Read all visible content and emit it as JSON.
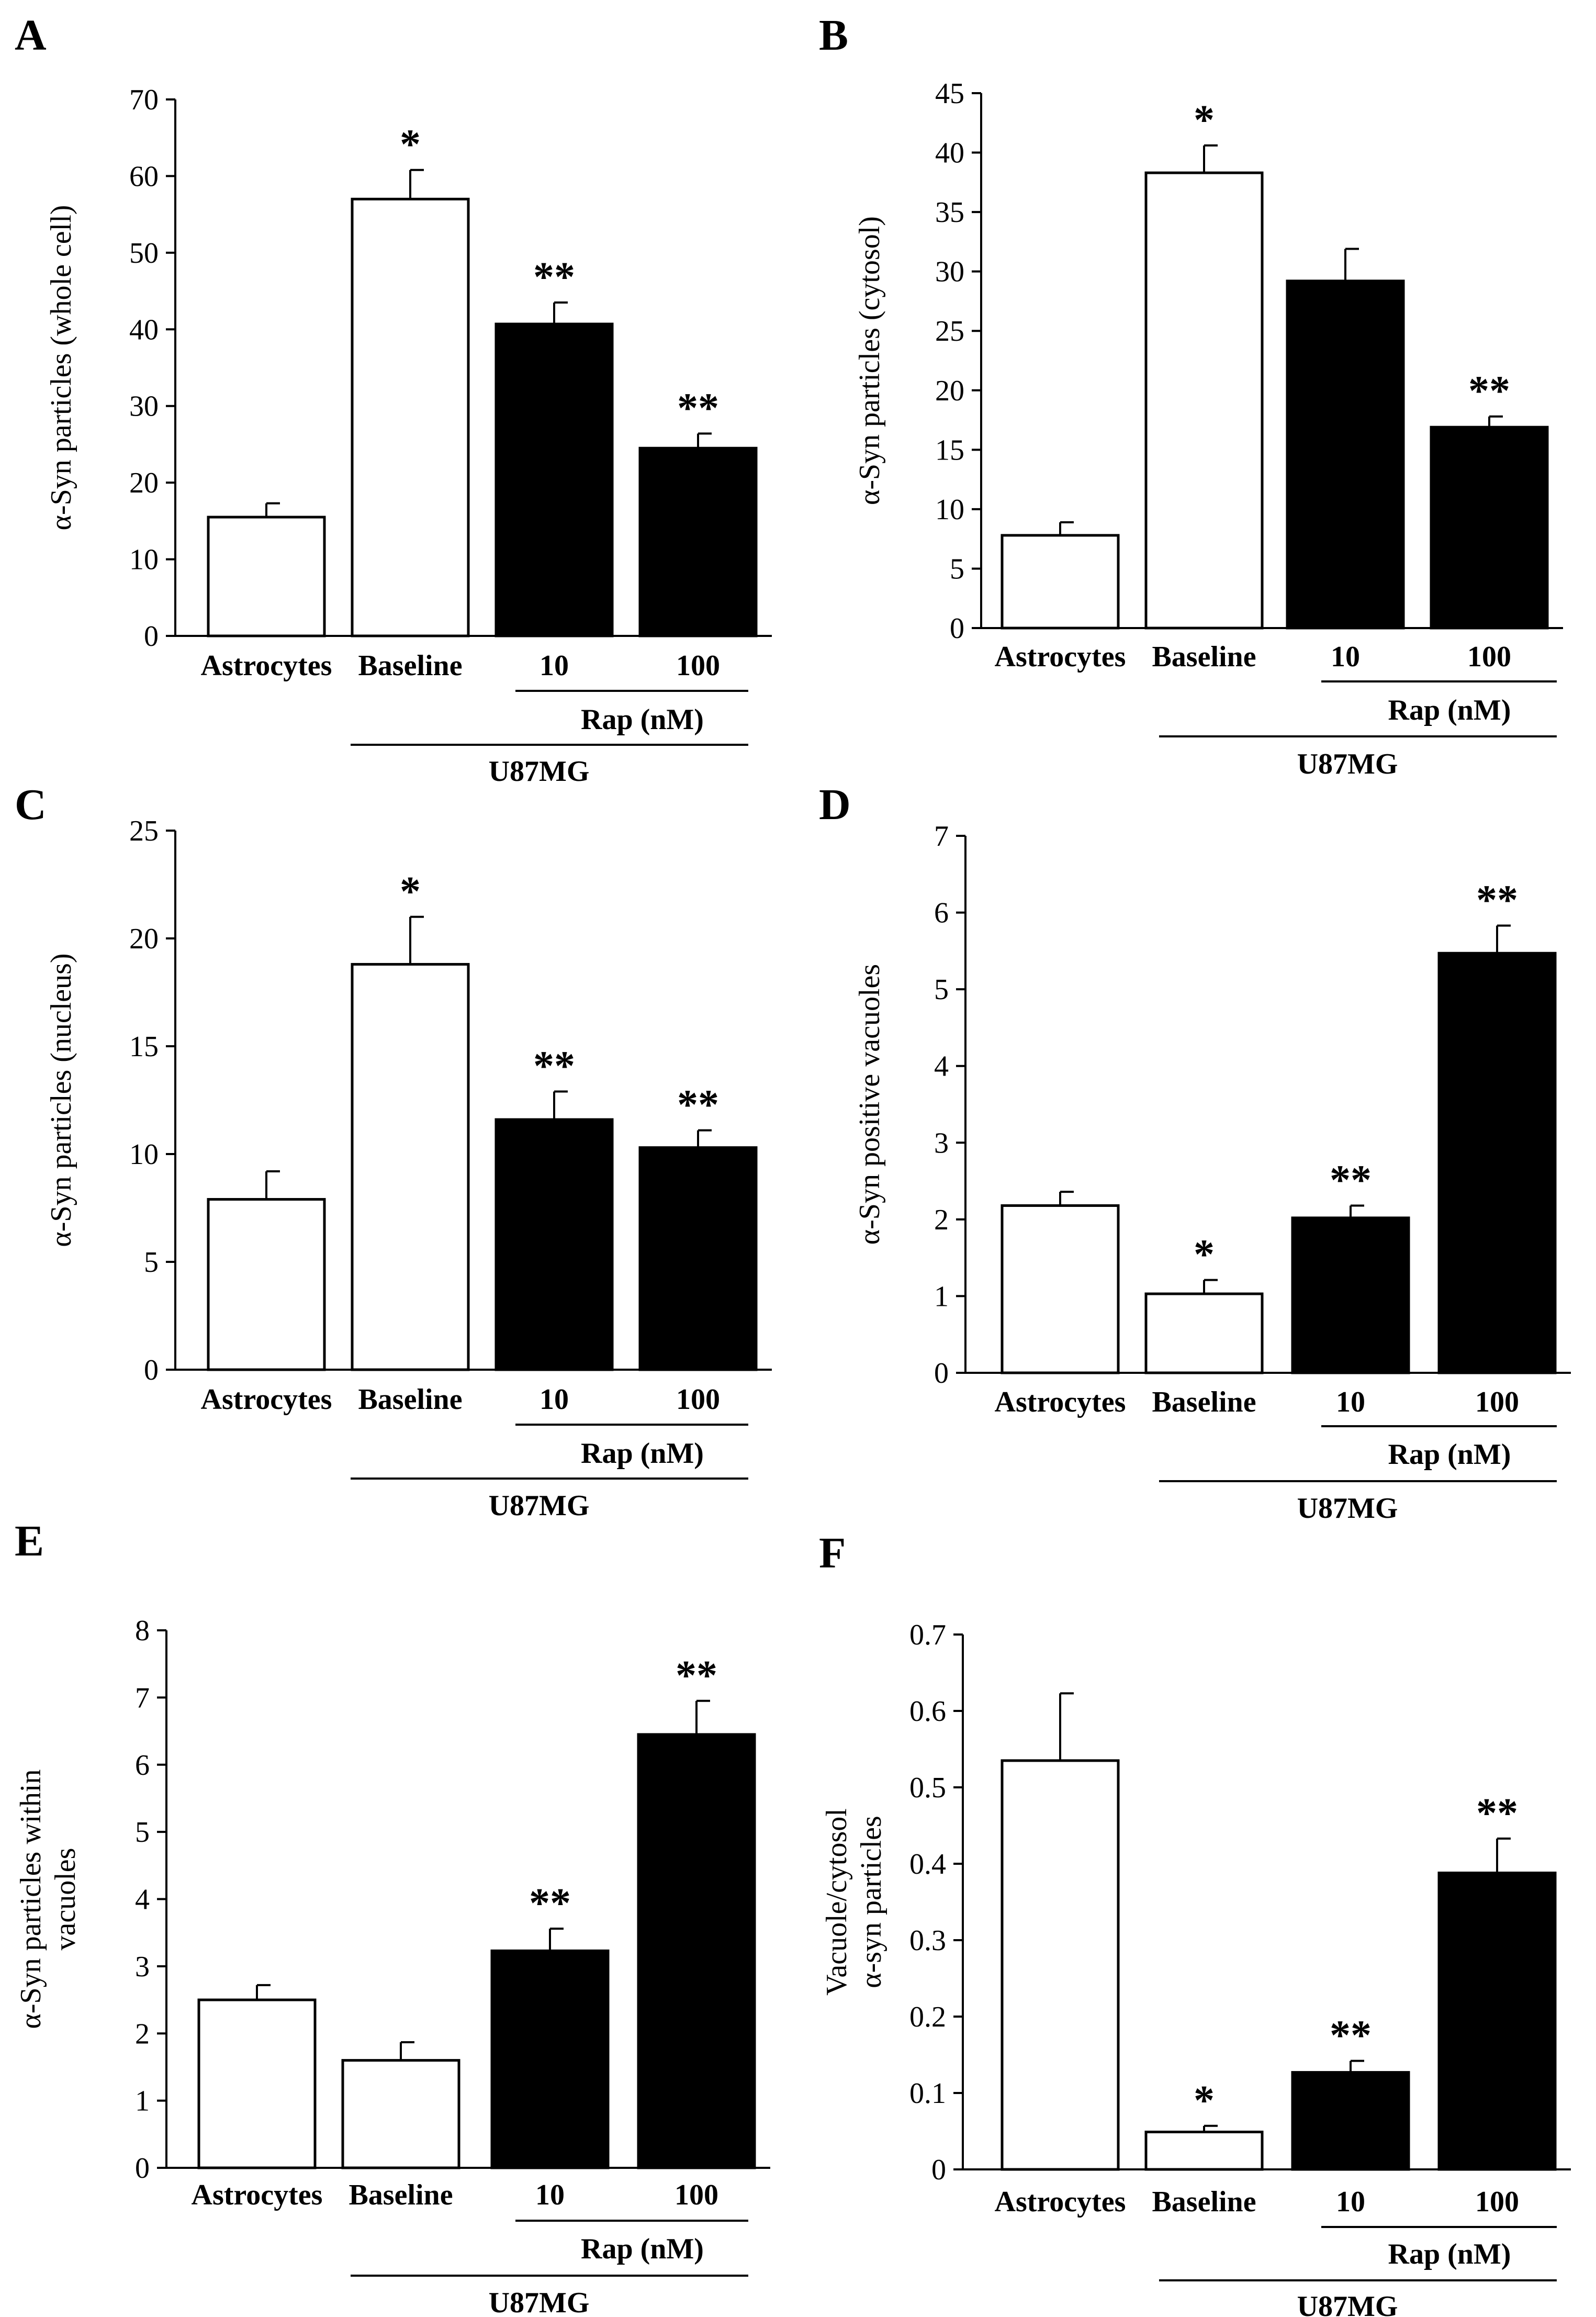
{
  "figure": {
    "units_label": "(nM)",
    "bar_colors": {
      "control": "#ffffff",
      "rap": "#000000",
      "stroke": "#000000"
    }
  },
  "chart_data": [
    {
      "panel": "A",
      "type": "bar",
      "ylabel": [
        "α-Syn particles (whole cell)"
      ],
      "ylim": [
        0,
        70
      ],
      "yticks": [
        0,
        10,
        20,
        30,
        40,
        50,
        60,
        70
      ],
      "categories": [
        "Astrocytes",
        "Baseline",
        "10",
        "100"
      ],
      "values": [
        15.5,
        57,
        40.7,
        24.5
      ],
      "errors": [
        1.8,
        3.8,
        2.8,
        1.9
      ],
      "fills": [
        "white",
        "white",
        "black",
        "black"
      ],
      "significance": [
        "",
        "*",
        "**",
        "**"
      ],
      "group_rap": "Rap",
      "group_cells": "U87MG"
    },
    {
      "panel": "B",
      "type": "bar",
      "ylabel": [
        "α-Syn particles (cytosol)"
      ],
      "ylim": [
        0,
        45
      ],
      "yticks": [
        0,
        5,
        10,
        15,
        20,
        25,
        30,
        35,
        40,
        45
      ],
      "categories": [
        "Astrocytes",
        "Baseline",
        "10",
        "100"
      ],
      "values": [
        7.8,
        38.3,
        29.2,
        16.9
      ],
      "errors": [
        1.1,
        2.3,
        2.7,
        0.9
      ],
      "fills": [
        "white",
        "white",
        "black",
        "black"
      ],
      "significance": [
        "",
        "*",
        "",
        "**"
      ],
      "group_rap": "Rap",
      "group_cells": "U87MG"
    },
    {
      "panel": "C",
      "type": "bar",
      "ylabel": [
        "α-Syn particles (nucleus)"
      ],
      "ylim": [
        0,
        25
      ],
      "yticks": [
        0,
        5,
        10,
        15,
        20,
        25
      ],
      "categories": [
        "Astrocytes",
        "Baseline",
        "10",
        "100"
      ],
      "values": [
        7.9,
        18.8,
        11.6,
        10.3
      ],
      "errors": [
        1.3,
        2.2,
        1.3,
        0.8
      ],
      "fills": [
        "white",
        "white",
        "black",
        "black"
      ],
      "significance": [
        "",
        "*",
        "**",
        "**"
      ],
      "group_rap": "Rap",
      "group_cells": "U87MG"
    },
    {
      "panel": "D",
      "type": "bar",
      "ylabel": [
        "α-Syn positive vacuoles"
      ],
      "ylim": [
        0,
        7
      ],
      "yticks": [
        0,
        1,
        2,
        3,
        4,
        5,
        6,
        7
      ],
      "categories": [
        "Astrocytes",
        "Baseline",
        "10",
        "100"
      ],
      "values": [
        2.18,
        1.03,
        2.02,
        5.47
      ],
      "errors": [
        0.18,
        0.18,
        0.16,
        0.36
      ],
      "fills": [
        "white",
        "white",
        "black",
        "black"
      ],
      "significance": [
        "",
        "*",
        "**",
        "**"
      ],
      "group_rap": "Rap",
      "group_cells": "U87MG"
    },
    {
      "panel": "E",
      "type": "bar",
      "ylabel": [
        "α-Syn particles within",
        "vacuoles"
      ],
      "ylim": [
        0,
        8
      ],
      "yticks": [
        0,
        1,
        2,
        3,
        4,
        5,
        6,
        7,
        8
      ],
      "categories": [
        "Astrocytes",
        "Baseline",
        "10",
        "100"
      ],
      "values": [
        2.5,
        1.6,
        3.23,
        6.45
      ],
      "errors": [
        0.22,
        0.27,
        0.33,
        0.5
      ],
      "fills": [
        "white",
        "white",
        "black",
        "black"
      ],
      "significance": [
        "",
        "",
        "**",
        "**"
      ],
      "group_rap": "Rap",
      "group_cells": "U87MG"
    },
    {
      "panel": "F",
      "type": "bar",
      "ylabel": [
        "Vacuole/cytosol",
        "α-syn particles"
      ],
      "ylim": [
        0,
        0.7
      ],
      "yticks": [
        "0",
        "0.1",
        "0.2",
        "0.3",
        "0.4",
        "0.5",
        "0.6",
        "0.7"
      ],
      "categories": [
        "Astrocytes",
        "Baseline",
        "10",
        "100"
      ],
      "values": [
        0.535,
        0.049,
        0.127,
        0.388
      ],
      "errors": [
        0.088,
        0.008,
        0.015,
        0.045
      ],
      "fills": [
        "white",
        "white",
        "black",
        "black"
      ],
      "significance": [
        "",
        "*",
        "**",
        "**"
      ],
      "group_rap": "Rap",
      "group_cells": "U87MG"
    }
  ]
}
